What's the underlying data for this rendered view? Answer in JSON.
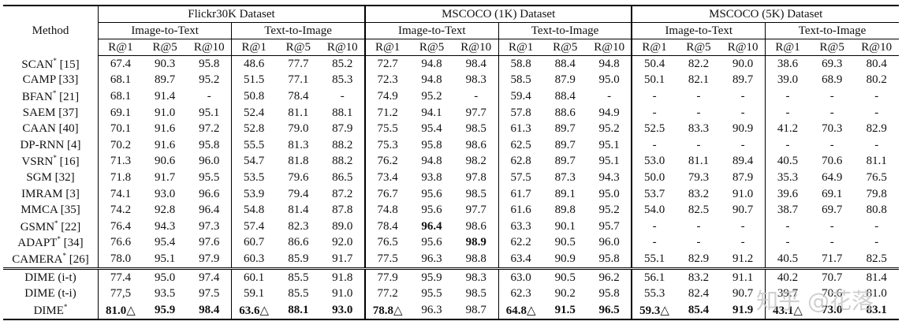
{
  "header": {
    "method": "Method",
    "datasets": [
      {
        "name": "Flickr30K Dataset",
        "tasks": [
          "Image-to-Text",
          "Text-to-Image"
        ]
      },
      {
        "name": "MSCOCO (1K) Dataset",
        "tasks": [
          "Image-to-Text",
          "Text-to-Image"
        ]
      },
      {
        "name": "MSCOCO (5K) Dataset",
        "tasks": [
          "Image-to-Text",
          "Text-to-Image"
        ]
      }
    ],
    "metrics": [
      "R@1",
      "R@5",
      "R@10"
    ]
  },
  "table": {
    "rows": [
      {
        "method": "SCAN",
        "sup": "*",
        "ref": "[15]",
        "cells": [
          "67.4",
          "90.3",
          "95.8",
          "48.6",
          "77.7",
          "85.2",
          "72.7",
          "94.8",
          "98.4",
          "58.8",
          "88.4",
          "94.8",
          "50.4",
          "82.2",
          "90.0",
          "38.6",
          "69.3",
          "80.4"
        ]
      },
      {
        "method": "CAMP",
        "ref": "[33]",
        "cells": [
          "68.1",
          "89.7",
          "95.2",
          "51.5",
          "77.1",
          "85.3",
          "72.3",
          "94.8",
          "98.3",
          "58.5",
          "87.9",
          "95.0",
          "50.1",
          "82.1",
          "89.7",
          "39.0",
          "68.9",
          "80.2"
        ]
      },
      {
        "method": "BFAN",
        "sup": "*",
        "ref": "[21]",
        "cells": [
          "68.1",
          "91.4",
          "-",
          "50.8",
          "78.4",
          "-",
          "74.9",
          "95.2",
          "-",
          "59.4",
          "88.4",
          "-",
          "-",
          "-",
          "-",
          "-",
          "-",
          "-"
        ]
      },
      {
        "method": "SAEM",
        "ref": "[37]",
        "cells": [
          "69.1",
          "91.0",
          "95.1",
          "52.4",
          "81.1",
          "88.1",
          "71.2",
          "94.1",
          "97.7",
          "57.8",
          "88.6",
          "94.9",
          "-",
          "-",
          "-",
          "-",
          "-",
          "-"
        ]
      },
      {
        "method": "CAAN",
        "ref": "[40]",
        "cells": [
          "70.1",
          "91.6",
          "97.2",
          "52.8",
          "79.0",
          "87.9",
          "75.5",
          "95.4",
          "98.5",
          "61.3",
          "89.7",
          "95.2",
          "52.5",
          "83.3",
          "90.9",
          "41.2",
          "70.3",
          "82.9"
        ]
      },
      {
        "method": "DP-RNN",
        "ref": "[4]",
        "cells": [
          "70.2",
          "91.6",
          "95.8",
          "55.5",
          "81.3",
          "88.2",
          "75.3",
          "95.8",
          "98.6",
          "62.5",
          "89.7",
          "95.1",
          "-",
          "-",
          "-",
          "-",
          "-",
          "-"
        ]
      },
      {
        "method": "VSRN",
        "sup": "*",
        "ref": "[16]",
        "cells": [
          "71.3",
          "90.6",
          "96.0",
          "54.7",
          "81.8",
          "88.2",
          "76.2",
          "94.8",
          "98.2",
          "62.8",
          "89.7",
          "95.1",
          "53.0",
          "81.1",
          "89.4",
          "40.5",
          "70.6",
          "81.1"
        ]
      },
      {
        "method": "SGM",
        "ref": "[32]",
        "cells": [
          "71.8",
          "91.7",
          "95.5",
          "53.5",
          "79.6",
          "86.5",
          "73.4",
          "93.8",
          "97.8",
          "57.5",
          "87.3",
          "94.3",
          "50.0",
          "79.3",
          "87.9",
          "35.3",
          "64.9",
          "76.5"
        ]
      },
      {
        "method": "IMRAM",
        "ref": "[3]",
        "cells": [
          "74.1",
          "93.0",
          "96.6",
          "53.9",
          "79.4",
          "87.2",
          "76.7",
          "95.6",
          "98.5",
          "61.7",
          "89.1",
          "95.0",
          "53.7",
          "83.2",
          "91.0",
          "39.6",
          "69.1",
          "79.8"
        ]
      },
      {
        "method": "MMCA",
        "ref": "[35]",
        "cells": [
          "74.2",
          "92.8",
          "96.4",
          "54.8",
          "81.4",
          "87.8",
          "74.8",
          "95.6",
          "97.7",
          "61.6",
          "89.8",
          "95.2",
          "54.0",
          "82.5",
          "90.7",
          "38.7",
          "69.7",
          "80.8"
        ]
      },
      {
        "method": "GSMN",
        "sup": "*",
        "ref": "[22]",
        "cells": [
          "76.4",
          "94.3",
          "97.3",
          "57.4",
          "82.3",
          "89.0",
          "78.4",
          "96.4",
          "98.6",
          "63.3",
          "90.1",
          "95.7",
          "-",
          "-",
          "-",
          "-",
          "-",
          "-"
        ],
        "bold": [
          7
        ]
      },
      {
        "method": "ADAPT",
        "sup": "*",
        "ref": "[34]",
        "cells": [
          "76.6",
          "95.4",
          "97.6",
          "60.7",
          "86.6",
          "92.0",
          "76.5",
          "95.6",
          "98.9",
          "62.2",
          "90.5",
          "96.0",
          "-",
          "-",
          "-",
          "-",
          "-",
          "-"
        ],
        "bold": [
          8
        ]
      },
      {
        "method": "CAMERA",
        "sup": "*",
        "ref": "[26]",
        "cells": [
          "78.0",
          "95.1",
          "97.9",
          "60.3",
          "85.9",
          "91.7",
          "77.5",
          "96.3",
          "98.8",
          "63.4",
          "90.9",
          "95.8",
          "55.1",
          "82.9",
          "91.2",
          "40.5",
          "71.7",
          "82.5"
        ]
      },
      {
        "method": "DIME (i-t)",
        "cells": [
          "77.4",
          "95.0",
          "97.4",
          "60.1",
          "85.5",
          "91.8",
          "77.9",
          "95.9",
          "98.3",
          "63.0",
          "90.5",
          "96.2",
          "56.1",
          "83.2",
          "91.1",
          "40.2",
          "70.7",
          "81.4"
        ]
      },
      {
        "method": "DIME (t-i)",
        "cells": [
          "77,5",
          "93.5",
          "97.5",
          "59.1",
          "85.5",
          "91.0",
          "77.2",
          "95.5",
          "98.5",
          "62.3",
          "90.2",
          "95.8",
          "55.3",
          "82.4",
          "90.7",
          "39.7",
          "70.6",
          "81.0"
        ]
      },
      {
        "method": "DIME",
        "sup": "*",
        "cells": [
          "81.0△",
          "95.9",
          "98.4",
          "63.6△",
          "88.1",
          "93.0",
          "78.8△",
          "96.3",
          "98.7",
          "64.8△",
          "91.5",
          "96.5",
          "59.3△",
          "85.4",
          "91.9",
          "43.1△",
          "73.0",
          "83.1"
        ],
        "bold": [
          0,
          1,
          2,
          3,
          4,
          5,
          6,
          9,
          10,
          11,
          12,
          13,
          14,
          15,
          16,
          17
        ]
      }
    ]
  },
  "watermark": "知乎 @花落"
}
